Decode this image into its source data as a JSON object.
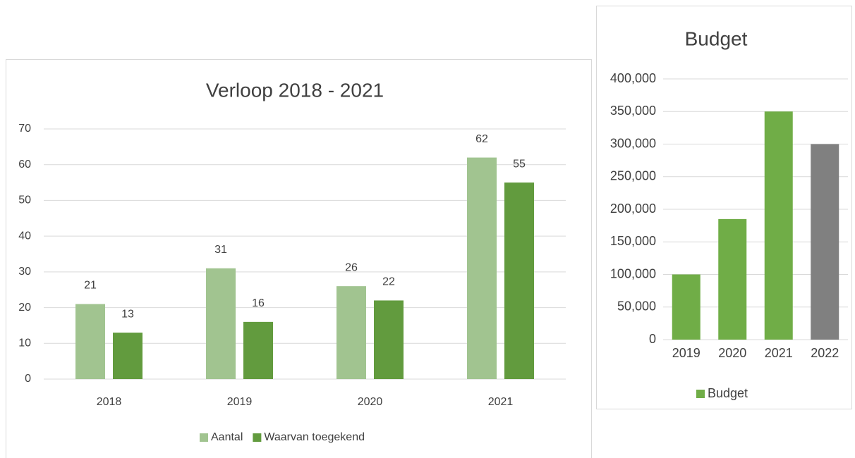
{
  "chart_data": [
    {
      "type": "grouped-bar",
      "title": "Verloop 2018 - 2021",
      "categories": [
        "2018",
        "2019",
        "2020",
        "2021"
      ],
      "series": [
        {
          "name": "Aantal",
          "color": "#a1c490",
          "values": [
            21,
            31,
            26,
            62
          ]
        },
        {
          "name": "Waarvan toegekend",
          "color": "#629b3e",
          "values": [
            13,
            16,
            22,
            55
          ]
        }
      ],
      "ylim": [
        0,
        70
      ],
      "yticks": [
        0,
        10,
        20,
        30,
        40,
        50,
        60,
        70
      ],
      "grid": true,
      "data_labels": true,
      "legend": "bottom"
    },
    {
      "type": "bar",
      "title": "Budget",
      "categories": [
        "2019",
        "2020",
        "2021",
        "2022"
      ],
      "series": [
        {
          "name": "Budget",
          "color": "#70ad47",
          "values": [
            100000,
            185000,
            350000,
            300000
          ]
        }
      ],
      "bar_colors": [
        "#70ad47",
        "#70ad47",
        "#70ad47",
        "#808080"
      ],
      "ylim": [
        0,
        400000
      ],
      "yticks": [
        0,
        {
          "value": 50000,
          "label": "50,000"
        },
        {
          "value": 100000,
          "label": "100,000"
        },
        {
          "value": 150000,
          "label": "150,000"
        },
        {
          "value": 200000,
          "label": "200,000"
        },
        {
          "value": 250000,
          "label": "250,000"
        },
        {
          "value": 300000,
          "label": "300,000"
        },
        {
          "value": 350000,
          "label": "350,000"
        },
        {
          "value": 400000,
          "label": "400,000"
        }
      ],
      "grid": true,
      "data_labels": false,
      "legend": "bottom"
    }
  ]
}
